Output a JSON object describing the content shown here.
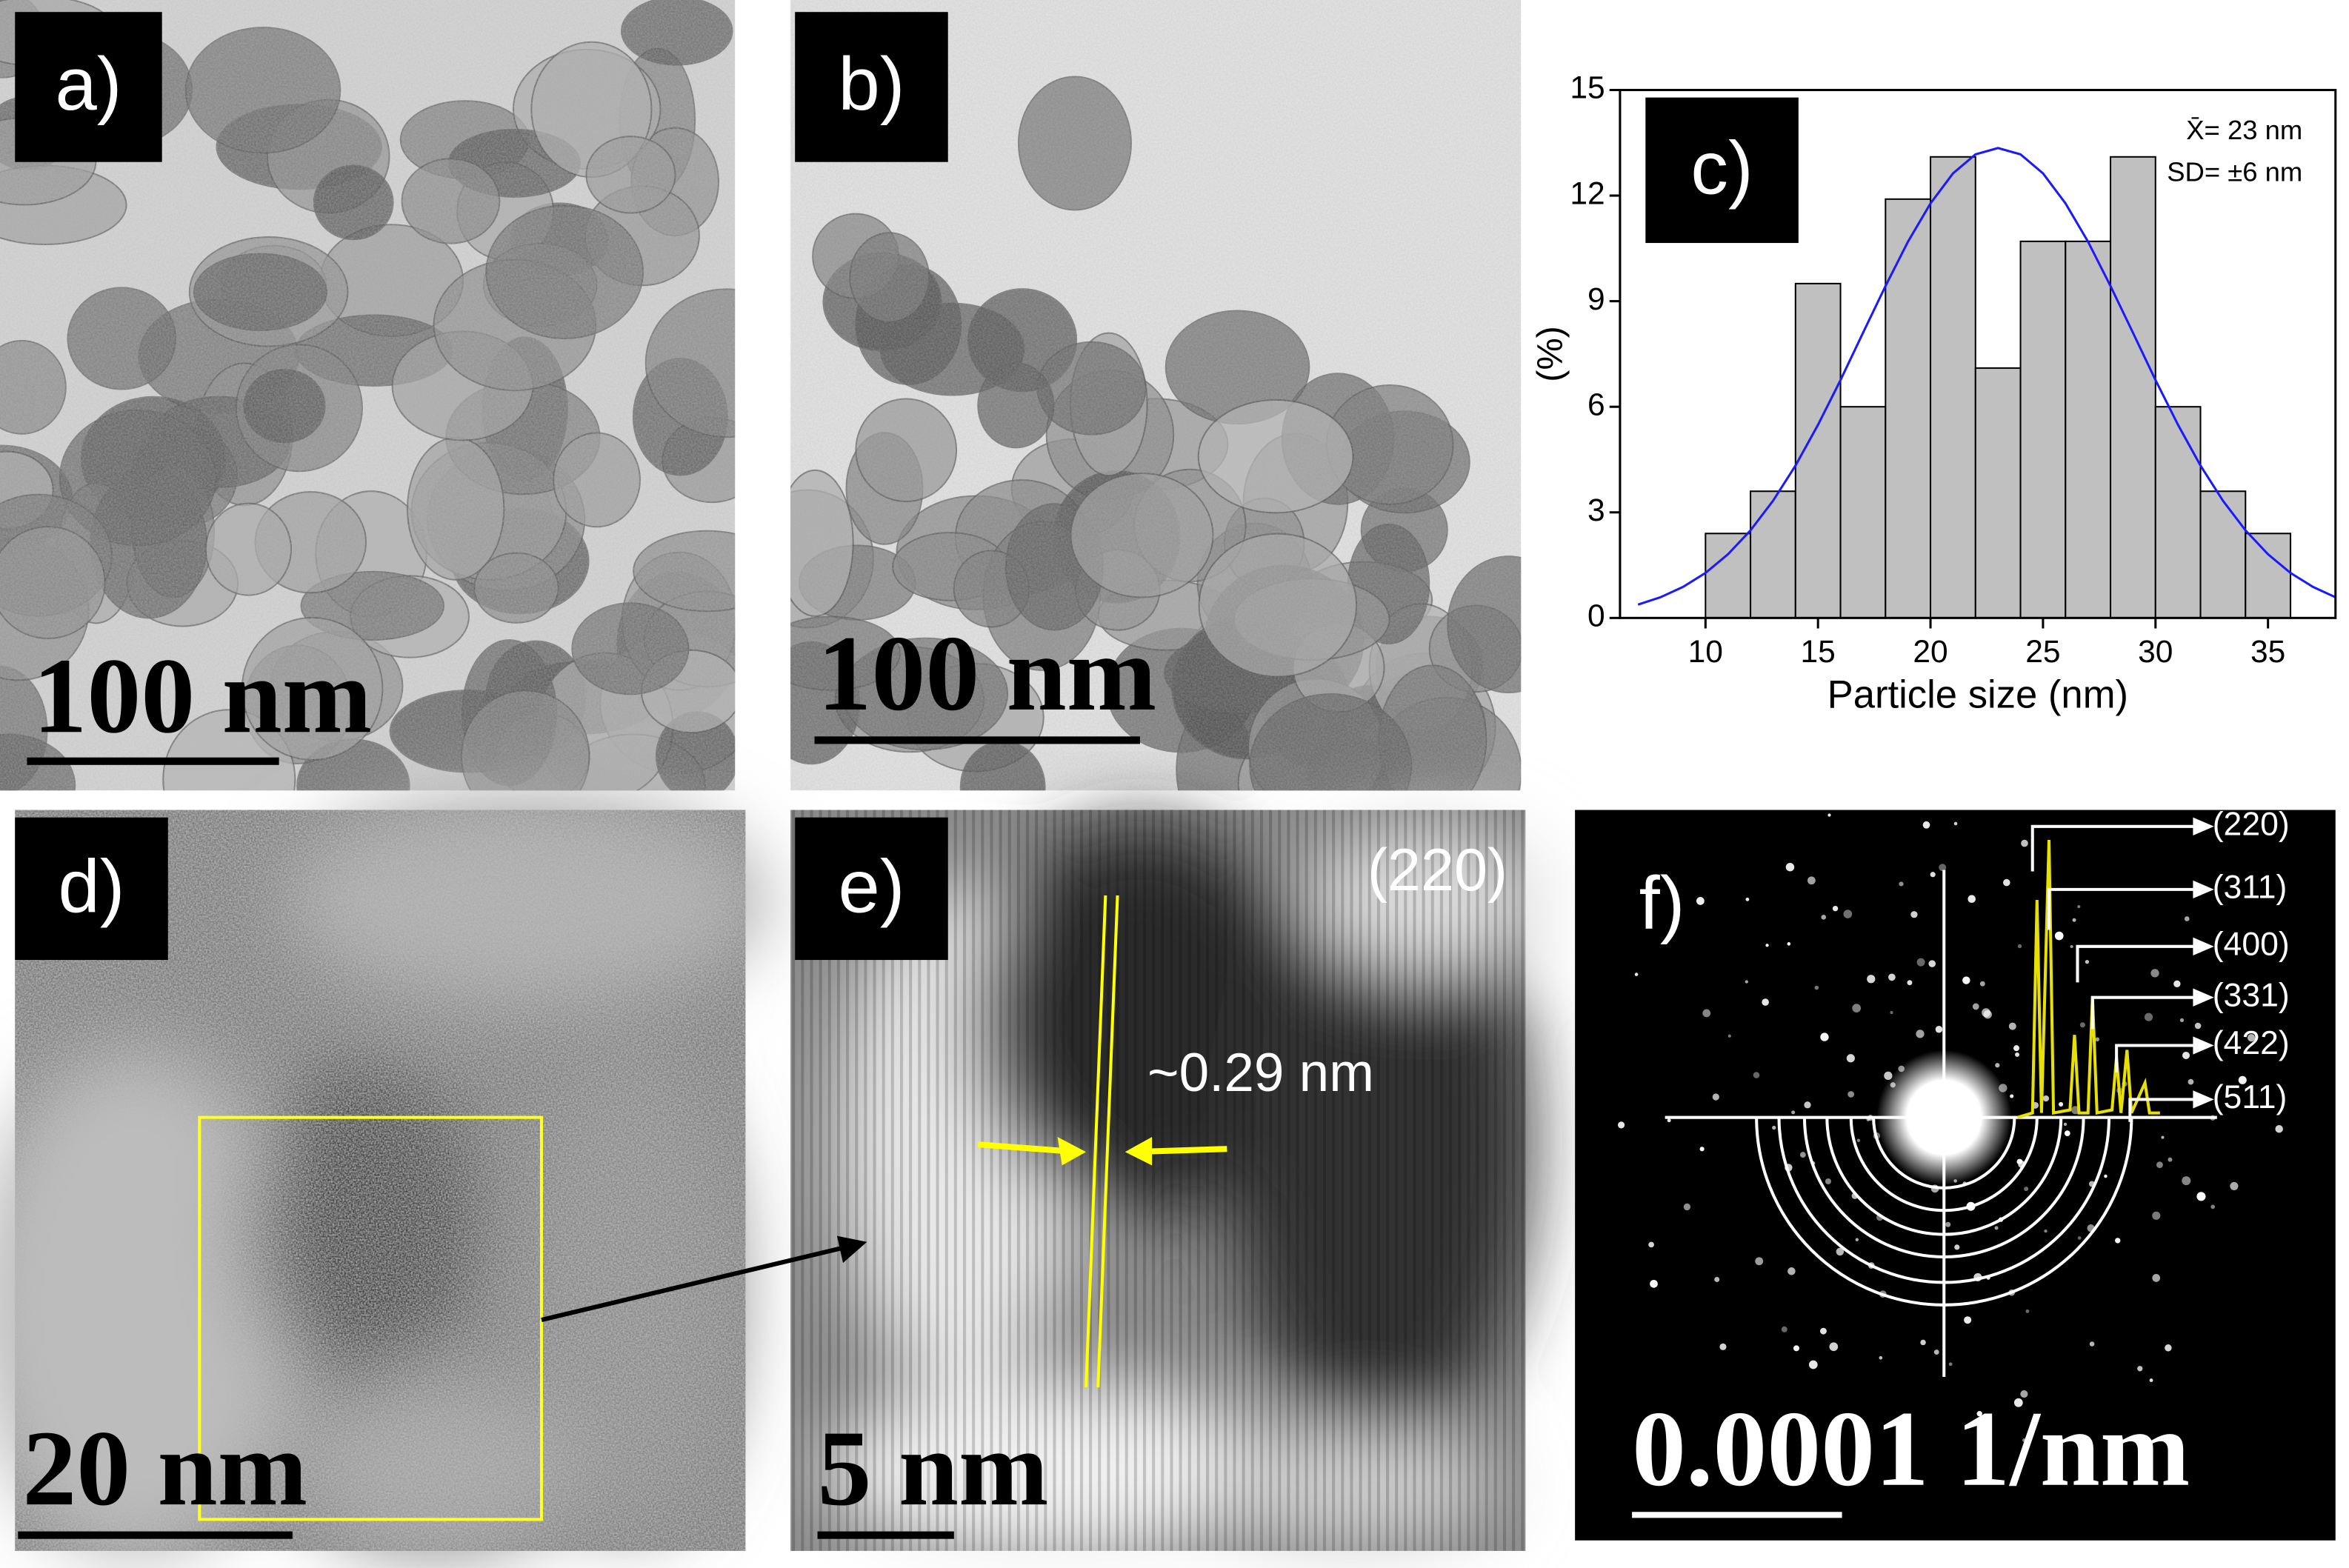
{
  "panels": {
    "a": {
      "label": "a)",
      "scale_bar": "100 nm"
    },
    "b": {
      "label": "b)",
      "scale_bar": "100 nm"
    },
    "c": {
      "label": "c)"
    },
    "d": {
      "label": "d)",
      "scale_bar": "20 nm"
    },
    "e": {
      "label": "e)",
      "scale_bar": "5 nm",
      "plane": "(220)",
      "spacing": "~0.29 nm"
    },
    "f": {
      "label": "f)",
      "scale_bar": "0.0001 1/nm",
      "rings": [
        "(220)",
        "(311)",
        "(400)",
        "(331)",
        "(422)",
        "(511)"
      ]
    }
  },
  "chart_data": {
    "type": "histogram",
    "xlabel": "Particle size (nm)",
    "ylabel": "(%)",
    "bins": [
      10,
      12,
      14,
      16,
      18,
      20,
      22,
      24,
      26,
      28,
      30,
      32,
      34,
      36
    ],
    "values": [
      2.4,
      3.6,
      9.5,
      6,
      11.9,
      13.1,
      7.1,
      10.7,
      10.7,
      13.1,
      6,
      3.6,
      2.4
    ],
    "color": "#c0c0c0",
    "xlim": [
      6.2,
      38
    ],
    "ylim": [
      0,
      15
    ],
    "xticks": [
      10,
      15,
      20,
      25,
      30,
      35
    ],
    "yticks": [
      0,
      3,
      6,
      9,
      12,
      15
    ],
    "annotations": [
      "X̄= 23 nm",
      "SD= ±6 nm"
    ],
    "fit": {
      "color": "#1a1aff",
      "x": [
        7,
        8,
        9,
        10,
        11,
        12,
        13,
        14,
        15,
        16,
        17,
        18,
        19,
        20,
        21,
        22,
        23,
        24,
        25,
        26,
        27,
        28,
        29,
        30,
        31,
        32,
        33,
        34,
        35,
        36,
        37,
        38
      ],
      "values": [
        0.38,
        0.59,
        0.88,
        1.28,
        1.81,
        2.49,
        3.33,
        4.33,
        5.49,
        6.76,
        8.1,
        9.43,
        10.69,
        11.78,
        12.63,
        13.17,
        13.35,
        13.17,
        12.63,
        11.78,
        10.69,
        9.43,
        8.1,
        6.76,
        5.49,
        4.33,
        3.33,
        2.49,
        1.81,
        1.28,
        0.88,
        0.59
      ]
    }
  }
}
